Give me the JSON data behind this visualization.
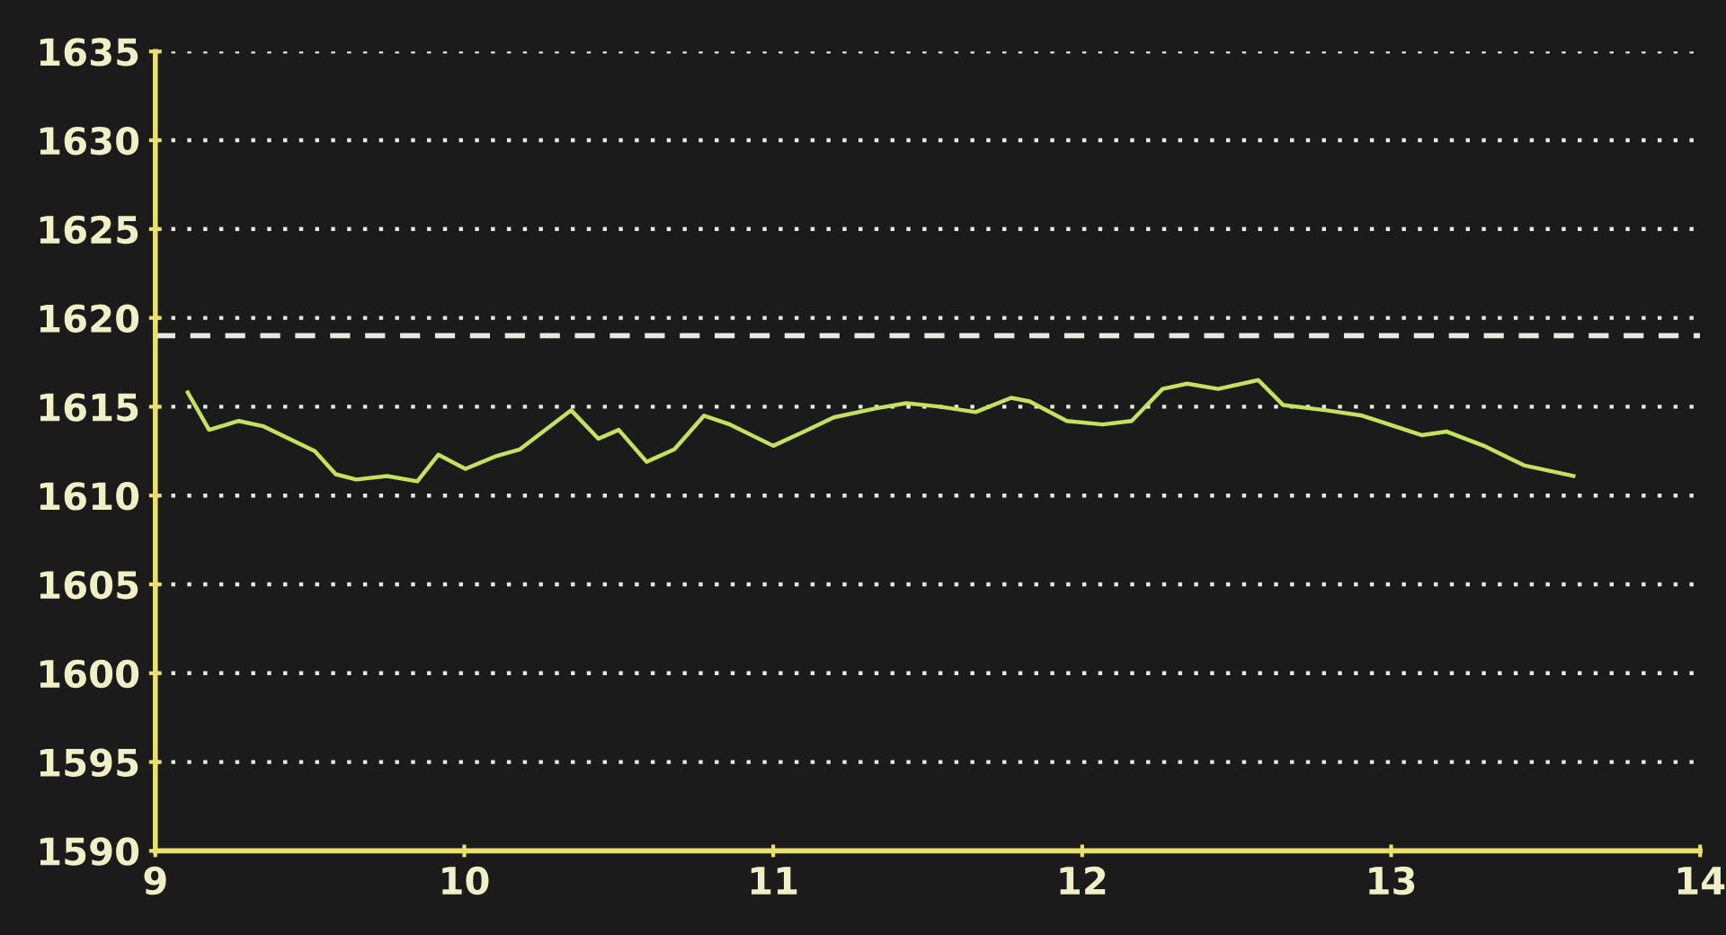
{
  "chart_data": {
    "type": "line",
    "x": [
      9.105,
      9.174,
      9.27,
      9.35,
      9.516,
      9.584,
      9.65,
      9.75,
      9.848,
      9.916,
      10.004,
      10.1,
      10.18,
      10.346,
      10.434,
      10.5,
      10.59,
      10.68,
      10.776,
      10.86,
      11.0,
      11.1,
      11.196,
      11.33,
      11.43,
      11.54,
      11.655,
      11.77,
      11.83,
      11.95,
      12.066,
      12.16,
      12.26,
      12.34,
      12.44,
      12.57,
      12.65,
      12.79,
      12.906,
      13.1,
      13.18,
      13.3,
      13.43,
      13.59
    ],
    "series": [
      {
        "color": "#c8e060",
        "values": [
          1615.8,
          1613.7,
          1614.2,
          1613.9,
          1612.5,
          1611.2,
          1610.9,
          1611.1,
          1610.8,
          1612.3,
          1611.5,
          1612.2,
          1612.6,
          1614.8,
          1613.2,
          1613.7,
          1611.9,
          1612.6,
          1614.5,
          1614.0,
          1612.8,
          1613.6,
          1614.4,
          1614.9,
          1615.2,
          1615.0,
          1614.7,
          1615.5,
          1615.3,
          1614.2,
          1614.0,
          1614.2,
          1616.0,
          1616.3,
          1616.0,
          1616.5,
          1615.1,
          1614.8,
          1614.5,
          1613.4,
          1613.6,
          1612.8,
          1611.7,
          1611.1
        ]
      }
    ],
    "xlim": [
      9,
      14
    ],
    "xticks": [
      9,
      10,
      11,
      12,
      13,
      14
    ],
    "ylim": [
      1590,
      1635
    ],
    "yticks": [
      1590,
      1595,
      1600,
      1605,
      1610,
      1615,
      1620,
      1625,
      1630,
      1635
    ],
    "grid": "y",
    "line_style": "solid",
    "marker": "none",
    "ref_lines": [
      {
        "axis": "y",
        "value": 1619,
        "label": null,
        "color": "#e8e8e0",
        "line_style": "dashed"
      }
    ]
  }
}
